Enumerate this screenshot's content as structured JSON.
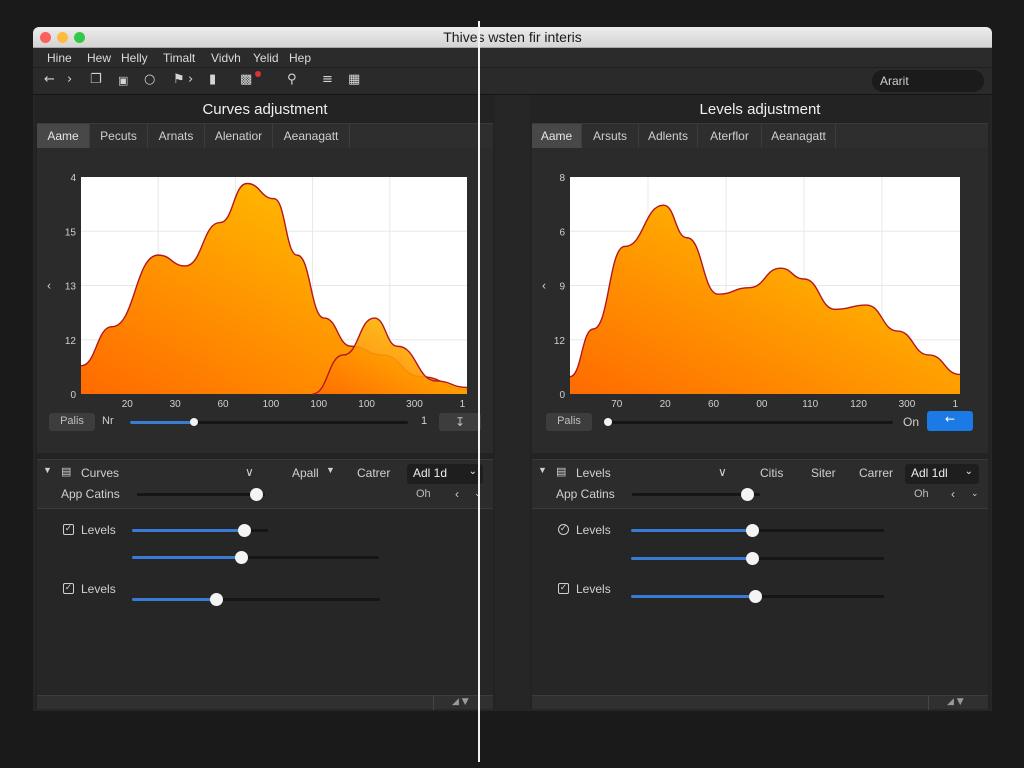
{
  "window": {
    "title": "Thives wsten fir interis"
  },
  "menu": [
    "Hine",
    "Hew",
    "Helly",
    "Timalt",
    "Vidvh",
    "Yelid",
    "Hep"
  ],
  "toolbar": {
    "icons": [
      "back-arrow-icon",
      "forward-arrow-icon",
      "copy-icon",
      "window-icon",
      "circle-icon",
      "flag-icon",
      "chevron-right-icon",
      "bar-chart-icon",
      "zoom-icon",
      "list-icon",
      "grid-icon"
    ],
    "search_label": "Ararit"
  },
  "colors": {
    "accent": "#1c7ae6",
    "slider": "#3a7bd5",
    "curve_fill_start": "#ff6a00",
    "curve_fill_end": "#ffd000",
    "curve_stroke": "#b3181f"
  },
  "left": {
    "title": "Curves adjustment",
    "tabs": [
      "Aame",
      "Pecuts",
      "Arnats",
      "Alenatior",
      "Aeanagatt"
    ],
    "chart_data": {
      "type": "area",
      "y_ticks": [
        "4",
        "15",
        "13",
        "12",
        "0"
      ],
      "x_ticks": [
        "20",
        "30",
        "60",
        "100",
        "100",
        "100",
        "300",
        "1"
      ],
      "y_marker": "‹",
      "series": [
        {
          "points": [
            [
              0,
              0.13
            ],
            [
              0.08,
              0.31
            ],
            [
              0.2,
              0.64
            ],
            [
              0.27,
              0.59
            ],
            [
              0.36,
              0.79
            ],
            [
              0.43,
              0.97
            ],
            [
              0.5,
              0.9
            ],
            [
              0.56,
              0.64
            ],
            [
              0.63,
              0.35
            ],
            [
              0.7,
              0.22
            ],
            [
              0.78,
              0.18
            ],
            [
              0.88,
              0.08
            ],
            [
              1,
              0.02
            ]
          ]
        },
        {
          "points": [
            [
              0.6,
              0.0
            ],
            [
              0.68,
              0.18
            ],
            [
              0.76,
              0.35
            ],
            [
              0.82,
              0.22
            ],
            [
              0.92,
              0.06
            ],
            [
              1,
              0.03
            ]
          ]
        }
      ]
    },
    "controls": {
      "button_label": "Palis",
      "label": "Nr",
      "slider_value": 0.23,
      "end_label": "1",
      "icon_button": "download-icon"
    },
    "lower": {
      "layer_name": "Curves",
      "btn1": "Apall",
      "btn2": "Catrer",
      "select_label": "Adl   1d",
      "row2_label": "App Catins",
      "row2_right": "Oh",
      "row2_slider": 0.93,
      "checks": [
        {
          "label": "Levels",
          "sliders": [
            0.82,
            0.44
          ]
        },
        {
          "label": "Levels",
          "sliders": [
            0.34
          ]
        }
      ]
    }
  },
  "right": {
    "title": "Levels adjustment",
    "tabs": [
      "Aame",
      "Arsuts",
      "Adlents",
      "Aterflor",
      "Aeanagatt"
    ],
    "chart_data": {
      "type": "area",
      "y_ticks": [
        "8",
        "6",
        "9",
        "12",
        "0"
      ],
      "x_ticks": [
        "70",
        "20",
        "60",
        "00",
        "110",
        "120",
        "300",
        "1"
      ],
      "y_marker": "‹",
      "series": [
        {
          "points": [
            [
              0,
              0.08
            ],
            [
              0.06,
              0.3
            ],
            [
              0.14,
              0.68
            ],
            [
              0.24,
              0.87
            ],
            [
              0.3,
              0.72
            ],
            [
              0.38,
              0.46
            ],
            [
              0.46,
              0.49
            ],
            [
              0.54,
              0.58
            ],
            [
              0.6,
              0.53
            ],
            [
              0.68,
              0.39
            ],
            [
              0.76,
              0.41
            ],
            [
              0.84,
              0.29
            ],
            [
              0.92,
              0.18
            ],
            [
              1,
              0.09
            ]
          ]
        }
      ]
    },
    "controls": {
      "button_label": "Palis",
      "slider_value": 0.0,
      "on_label": "On",
      "blue_button": "back-icon"
    },
    "lower": {
      "layer_name": "Levels",
      "btn1": "Citis",
      "btn2": "Siter",
      "btn3": "Carrer",
      "select_label": "Adl   1dl",
      "row2_label": "App Catins",
      "row2_right": "Oh",
      "row2_slider": 0.9,
      "checks": [
        {
          "label": "Levels",
          "sliders": [
            0.48,
            0.48
          ]
        },
        {
          "label": "Levels",
          "sliders": [
            0.49
          ]
        }
      ]
    }
  }
}
